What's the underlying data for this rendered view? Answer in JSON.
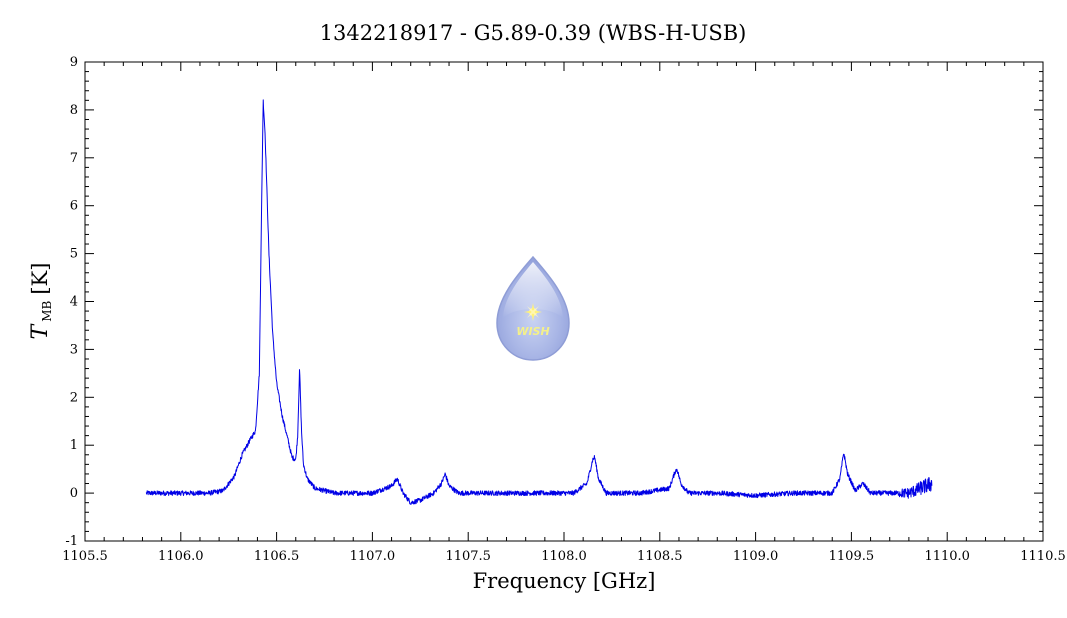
{
  "chart_data": {
    "type": "line",
    "title": "1342218917 - G5.89-0.39 (WBS-H-USB)",
    "xlabel": "Frequency [GHz]",
    "ylabel_symbol": "T",
    "ylabel_subscript": "MB",
    "ylabel_unit": "[K]",
    "xlim": [
      1105.5,
      1110.5
    ],
    "ylim": [
      -1,
      9
    ],
    "x_ticks": [
      "1105.5",
      "1106.0",
      "1106.5",
      "1107.0",
      "1107.5",
      "1108.0",
      "1108.5",
      "1109.0",
      "1109.5",
      "1110.0",
      "1110.5"
    ],
    "y_ticks": [
      "-1",
      "0",
      "1",
      "2",
      "3",
      "4",
      "5",
      "6",
      "7",
      "8",
      "9"
    ],
    "series_color": "#0000e6",
    "series": [
      {
        "x": [
          1105.82,
          1106.0,
          1106.15,
          1106.22,
          1106.28,
          1106.32,
          1106.36,
          1106.39,
          1106.41,
          1106.42,
          1106.43,
          1106.44,
          1106.46,
          1106.48,
          1106.5,
          1106.53,
          1106.56,
          1106.58,
          1106.6,
          1106.61,
          1106.62,
          1106.63,
          1106.64,
          1106.66,
          1106.7,
          1106.8,
          1107.0,
          1107.1,
          1107.13,
          1107.16,
          1107.2,
          1107.25,
          1107.32,
          1107.36,
          1107.38,
          1107.4,
          1107.45,
          1107.6,
          1107.8,
          1108.05,
          1108.12,
          1108.15,
          1108.16,
          1108.18,
          1108.22,
          1108.4,
          1108.55,
          1108.58,
          1108.59,
          1108.61,
          1108.65,
          1108.8,
          1109.0,
          1109.2,
          1109.4,
          1109.44,
          1109.46,
          1109.48,
          1109.52,
          1109.56,
          1109.6,
          1109.8,
          1109.92
        ],
        "y": [
          0.0,
          0.0,
          0.0,
          0.05,
          0.35,
          0.8,
          1.1,
          1.3,
          2.5,
          5.5,
          8.2,
          7.5,
          5.0,
          3.3,
          2.3,
          1.6,
          1.1,
          0.75,
          0.7,
          1.2,
          2.6,
          1.3,
          0.6,
          0.3,
          0.1,
          0.0,
          0.0,
          0.15,
          0.3,
          0.0,
          -0.2,
          -0.15,
          0.0,
          0.2,
          0.4,
          0.15,
          0.0,
          0.0,
          0.0,
          0.0,
          0.2,
          0.7,
          0.75,
          0.3,
          0.0,
          0.0,
          0.1,
          0.45,
          0.5,
          0.2,
          0.0,
          0.0,
          -0.05,
          0.0,
          0.0,
          0.3,
          0.85,
          0.4,
          0.05,
          0.2,
          0.0,
          0.0,
          0.2
        ]
      }
    ]
  }
}
